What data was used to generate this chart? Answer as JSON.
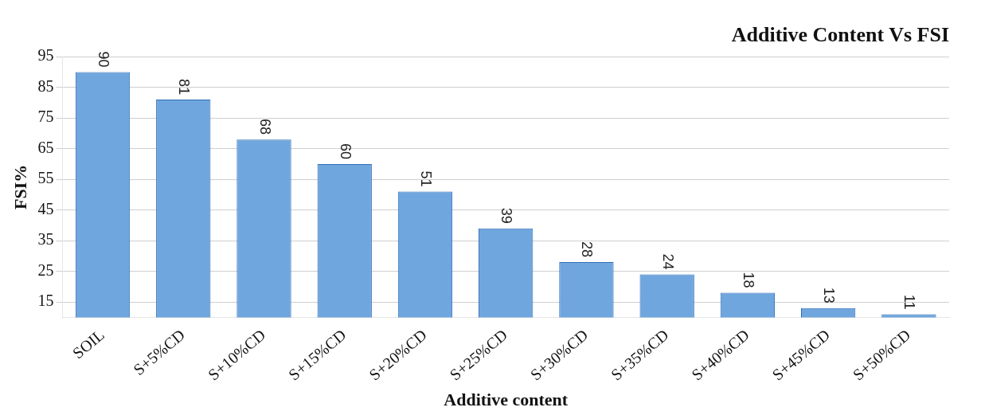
{
  "chart_data": {
    "type": "bar",
    "title": "Additive Content Vs FSI",
    "xlabel": "Additive content",
    "ylabel": "FSI%",
    "categories": [
      "SOIL",
      "S+5%CD",
      "S+10%CD",
      "S+15%CD",
      "S+20%CD",
      "S+25%CD",
      "S+30%CD",
      "S+35%CD",
      "S+40%CD",
      "S+45%CD",
      "S+50%CD"
    ],
    "values": [
      90,
      81,
      68,
      60,
      51,
      39,
      28,
      24,
      18,
      13,
      11
    ],
    "color": "#6fa6dd",
    "ylim": [
      10,
      95
    ],
    "yticks": [
      15,
      25,
      35,
      45,
      55,
      65,
      75,
      85,
      95
    ],
    "grid": "y",
    "data_labels": true
  }
}
